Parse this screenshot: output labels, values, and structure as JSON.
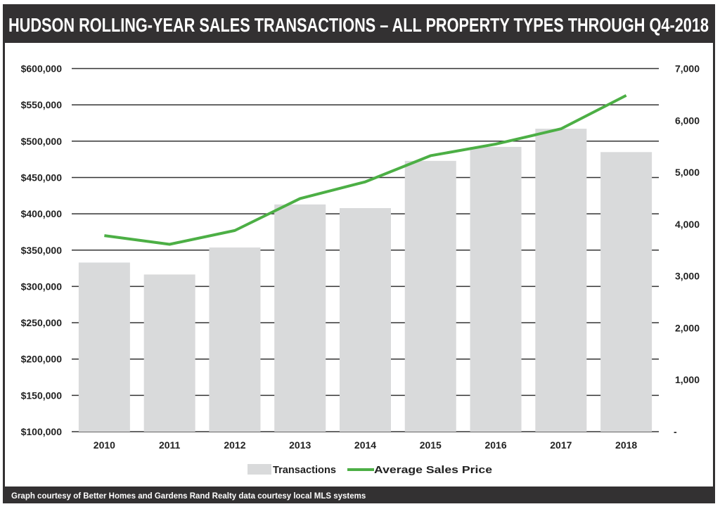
{
  "title": "HUDSON ROLLING-YEAR SALES TRANSACTIONS – ALL PROPERTY TYPES THROUGH Q4-2018",
  "footer": "Graph courtesy of Better Homes and Gardens Rand Realty data courtesy local MLS systems",
  "colors": {
    "frame": "#333132",
    "bar": "#d9dadb",
    "line": "#4caf45",
    "grid": "#333333"
  },
  "chart_data": {
    "type": "bar+line",
    "categories": [
      "2010",
      "2011",
      "2012",
      "2013",
      "2014",
      "2015",
      "2016",
      "2017",
      "2018"
    ],
    "series": [
      {
        "name": "Transactions",
        "type": "bar",
        "axis": "right",
        "values": [
          3260,
          3030,
          3550,
          4380,
          4310,
          5220,
          5490,
          5840,
          5390
        ]
      },
      {
        "name": "Average Sales Price",
        "type": "line",
        "axis": "left",
        "values": [
          370000,
          358000,
          377000,
          421000,
          444000,
          480000,
          496000,
          517000,
          563000
        ]
      }
    ],
    "left_axis": {
      "ylim": [
        100000,
        600000
      ],
      "ticks": [
        "$100,000",
        "$150,000",
        "$200,000",
        "$250,000",
        "$300,000",
        "$350,000",
        "$400,000",
        "$450,000",
        "$500,000",
        "$550,000",
        "$600,000"
      ]
    },
    "right_axis": {
      "ylim": [
        0,
        7000
      ],
      "ticks": [
        "-",
        "1,000",
        "2,000",
        "3,000",
        "4,000",
        "5,000",
        "6,000",
        "7,000"
      ]
    },
    "grid": true,
    "legend": {
      "position": "bottom",
      "items": [
        "Transactions",
        "Average Sales Price"
      ]
    }
  }
}
